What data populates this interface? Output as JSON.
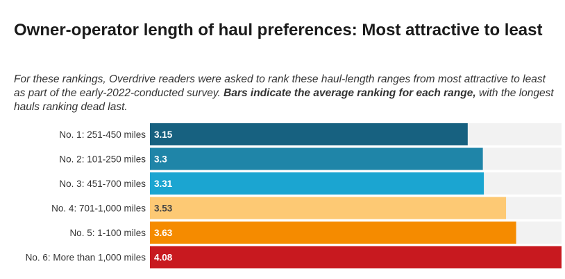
{
  "title": "Owner-operator length of haul preferences: Most attractive to least",
  "subtitle": {
    "part1": "For these rankings, Overdrive readers were asked to rank these haul-length ranges from most attractive to least as part of the early-2022-conducted survey. ",
    "bold": "Bars indicate the average ranking for each range,",
    "part2": " with the longest hauls ranking dead last."
  },
  "chart_data": {
    "type": "bar",
    "orientation": "horizontal",
    "title": "Owner-operator length of haul preferences: Most attractive to least",
    "categories": [
      "No. 1: 251-450 miles",
      "No. 2: 101-250 miles",
      "No. 3: 451-700 miles",
      "No. 4: 701-1,000 miles",
      "No. 5: 1-100 miles",
      "No. 6: More than 1,000 miles"
    ],
    "values": [
      3.15,
      3.3,
      3.31,
      3.53,
      3.63,
      4.08
    ],
    "value_labels": [
      "3.15",
      "3.3",
      "3.31",
      "3.53",
      "3.63",
      "4.08"
    ],
    "colors": [
      "#176180",
      "#1f85a8",
      "#1ba5d1",
      "#fdc974",
      "#f58b00",
      "#c8191f"
    ],
    "label_colors": [
      "#ffffff",
      "#ffffff",
      "#ffffff",
      "#444444",
      "#ffffff",
      "#ffffff"
    ],
    "track_color": "#f2f2f2",
    "xlim": [
      0,
      4.08
    ],
    "xlabel": "",
    "ylabel": ""
  }
}
